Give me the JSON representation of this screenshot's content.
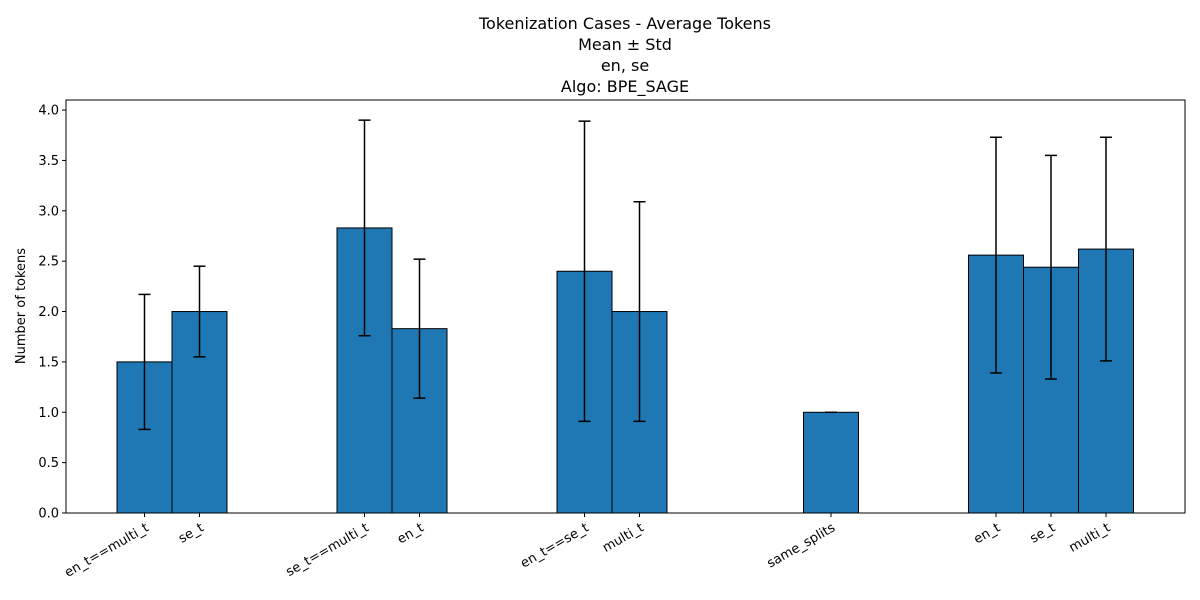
{
  "chart_data": {
    "type": "bar",
    "title_lines": [
      "Tokenization Cases - Average Tokens",
      "Mean ± Std",
      "en, se",
      "Algo: BPE_SAGE"
    ],
    "xlabel": "",
    "ylabel": "Number of tokens",
    "ylim": [
      0,
      4.1
    ],
    "yticks": [
      0.0,
      0.5,
      1.0,
      1.5,
      2.0,
      2.5,
      3.0,
      3.5,
      4.0
    ],
    "grid": false,
    "bar_color": "#1f77b4",
    "edge_color": "#000000",
    "groups": [
      {
        "bars": [
          {
            "label": "en_t==multi_t",
            "mean": 1.5,
            "std": 0.67
          },
          {
            "label": "se_t",
            "mean": 2.0,
            "std": 0.45
          }
        ]
      },
      {
        "bars": [
          {
            "label": "se_t==multi_t",
            "mean": 2.83,
            "std": 1.07
          },
          {
            "label": "en_t",
            "mean": 1.83,
            "std": 0.69
          }
        ]
      },
      {
        "bars": [
          {
            "label": "en_t==se_t",
            "mean": 2.4,
            "std": 1.49
          },
          {
            "label": "multi_t",
            "mean": 2.0,
            "std": 1.09
          }
        ]
      },
      {
        "bars": [
          {
            "label": "same_splits",
            "mean": 1.0,
            "std": 0.0
          }
        ]
      },
      {
        "bars": [
          {
            "label": "en_t",
            "mean": 2.56,
            "std": 1.17
          },
          {
            "label": "se_t",
            "mean": 2.44,
            "std": 1.11
          },
          {
            "label": "multi_t",
            "mean": 2.62,
            "std": 1.11
          }
        ]
      }
    ]
  }
}
